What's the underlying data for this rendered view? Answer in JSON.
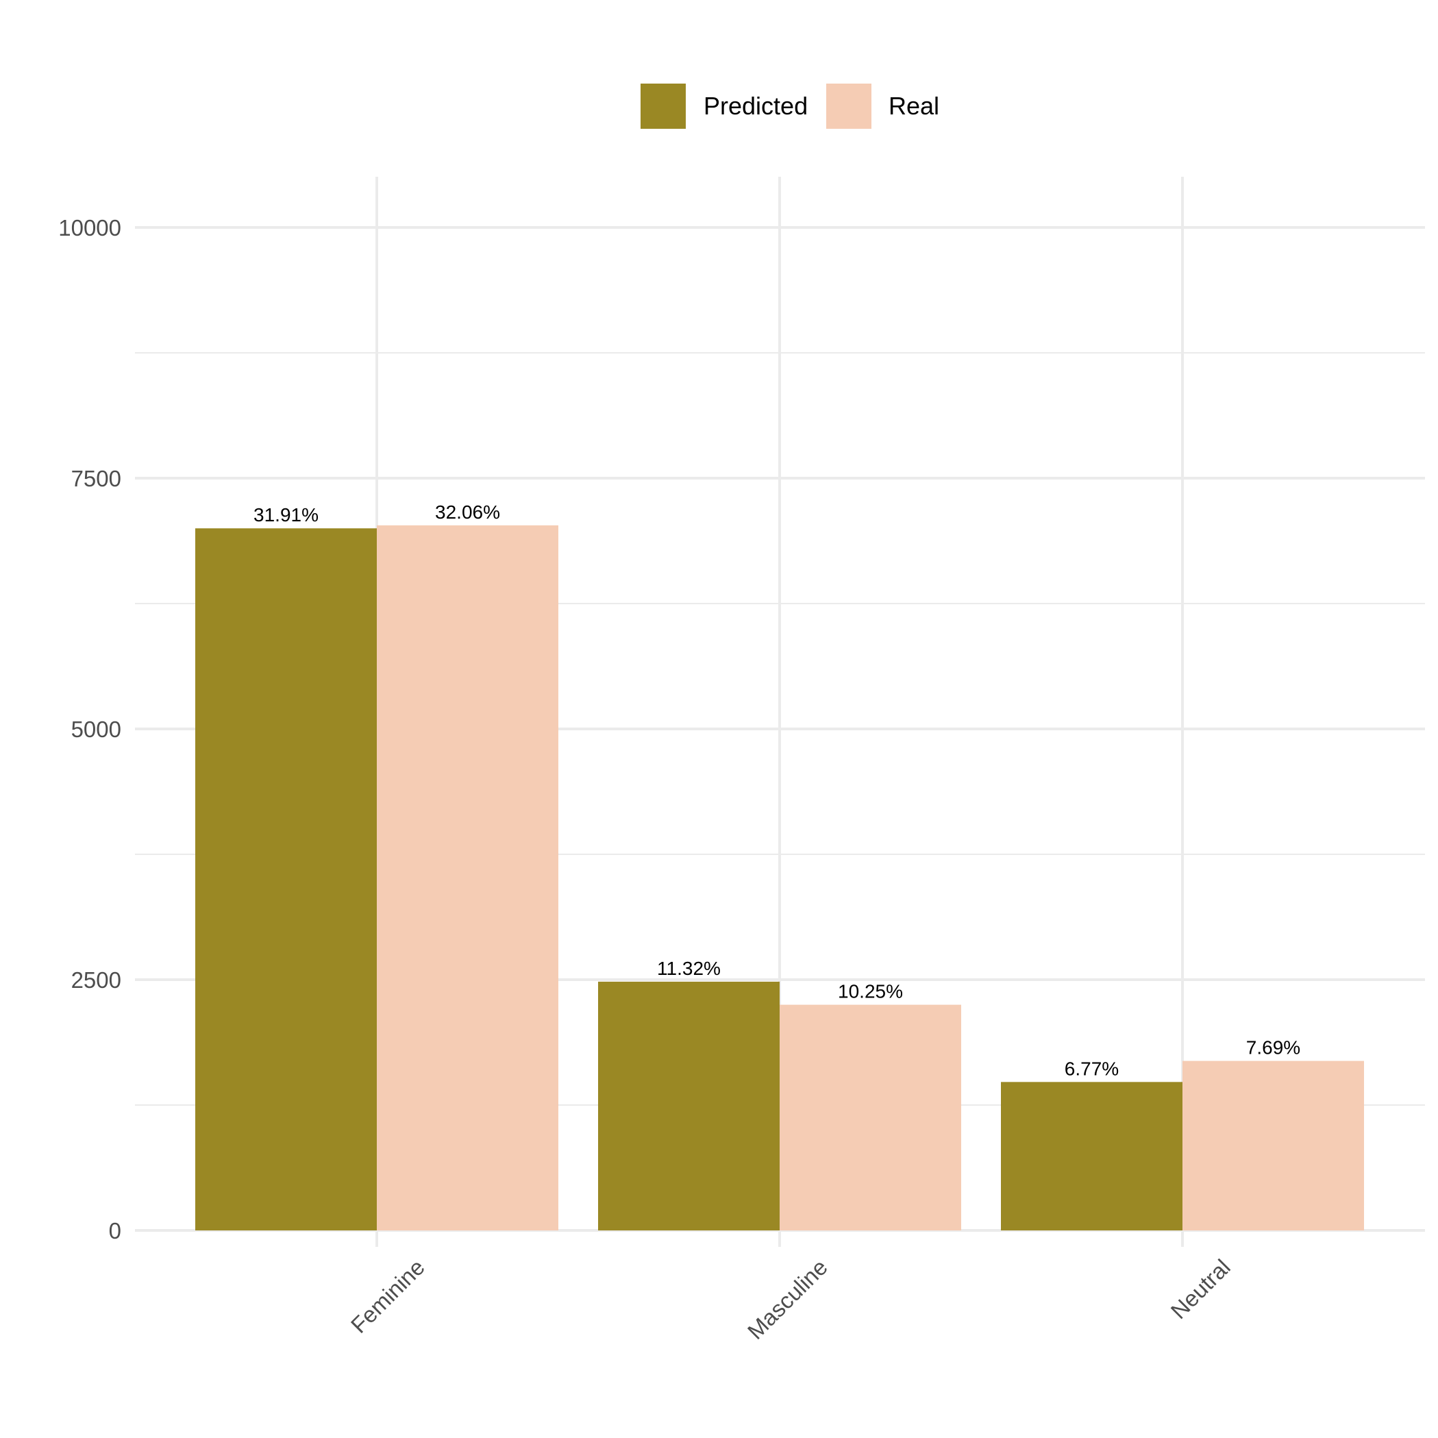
{
  "chart_data": {
    "type": "bar",
    "title": "",
    "xlabel": "",
    "ylabel": "",
    "categories": [
      "Feminine",
      "Masculine",
      "Neutral"
    ],
    "series": [
      {
        "name": "Predicted",
        "color": "#9a8824",
        "values": [
          7000,
          2480,
          1480
        ],
        "labels": [
          "31.91%",
          "11.32%",
          "6.77%"
        ]
      },
      {
        "name": "Real",
        "color": "#f5ccb4",
        "values": [
          7030,
          2250,
          1690
        ],
        "labels": [
          "32.06%",
          "10.25%",
          "7.69%"
        ]
      }
    ],
    "ylim": [
      0,
      10500
    ],
    "yticks": [
      0,
      2500,
      5000,
      7500,
      10000
    ],
    "ytick_labels": [
      "0",
      "2500",
      "5000",
      "7500",
      "10000"
    ],
    "grid": true,
    "legend_position": "top",
    "colors": {
      "grid": "#ebebeb",
      "axis_text": "#4d4d4d"
    }
  }
}
